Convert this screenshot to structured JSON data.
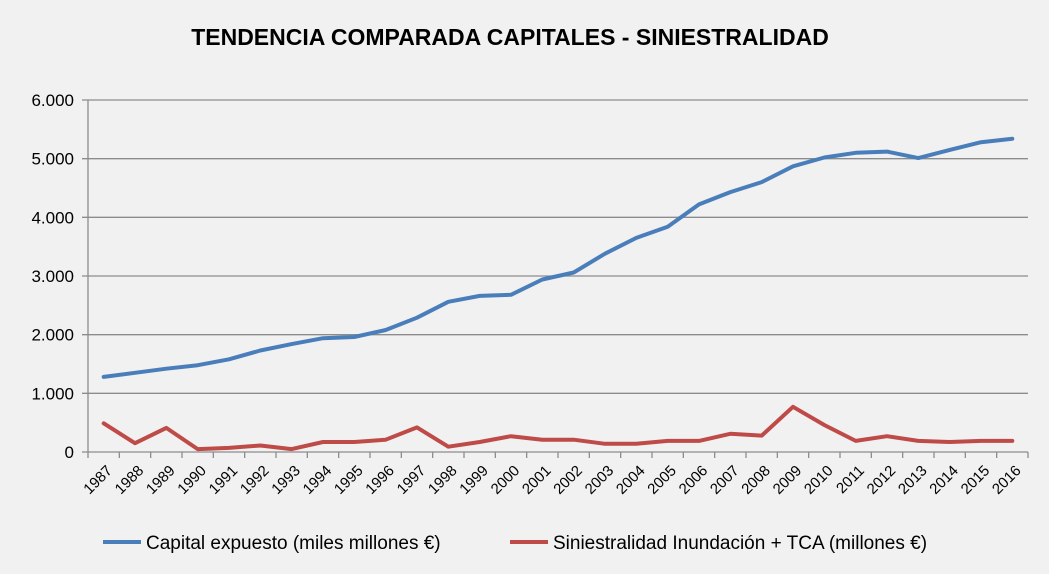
{
  "chart_data": {
    "type": "line",
    "title": "TENDENCIA COMPARADA CAPITALES - SINIESTRALIDAD",
    "xlabel": "",
    "ylabel": "",
    "ylim": [
      0,
      6000
    ],
    "yticks": [
      0,
      1000,
      2000,
      3000,
      4000,
      5000,
      6000
    ],
    "ytick_labels": [
      "0",
      "1.000",
      "2.000",
      "3.000",
      "4.000",
      "5.000",
      "6.000"
    ],
    "grid": true,
    "legend_position": "bottom",
    "categories": [
      "1987",
      "1988",
      "1989",
      "1990",
      "1991",
      "1992",
      "1993",
      "1994",
      "1995",
      "1996",
      "1997",
      "1998",
      "1999",
      "2000",
      "2001",
      "2002",
      "2003",
      "2004",
      "2005",
      "2006",
      "2007",
      "2008",
      "2009",
      "2010",
      "2011",
      "2012",
      "2013",
      "2014",
      "2015",
      "2016"
    ],
    "series": [
      {
        "name": "Capital expuesto (miles millones €)",
        "color": "#4a7ebb",
        "values": [
          1280,
          1350,
          1420,
          1480,
          1580,
          1730,
          1840,
          1940,
          1960,
          2080,
          2290,
          2560,
          2660,
          2680,
          2940,
          3060,
          3380,
          3650,
          3840,
          4220,
          4430,
          4600,
          4870,
          5020,
          5100,
          5120,
          5010,
          5150,
          5280,
          5340
        ]
      },
      {
        "name": "Siniestralidad Inundación + TCA (millones €)",
        "color": "#be4b48",
        "values": [
          490,
          150,
          410,
          50,
          70,
          110,
          50,
          170,
          170,
          210,
          420,
          90,
          170,
          270,
          210,
          210,
          140,
          140,
          190,
          190,
          310,
          280,
          770,
          460,
          190,
          270,
          190,
          170,
          190,
          190
        ]
      }
    ]
  }
}
